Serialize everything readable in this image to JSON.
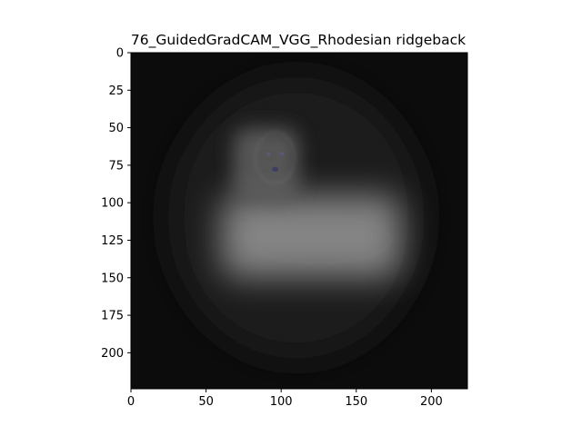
{
  "chart_data": {
    "type": "heatmap",
    "title": "76_GuidedGradCAM_VGG_Rhodesian ridgeback",
    "xlabel": "",
    "ylabel": "",
    "xlim": [
      0,
      224
    ],
    "ylim": [
      224,
      0
    ],
    "xticks": [
      0,
      50,
      100,
      150,
      200
    ],
    "xtick_labels": [
      "0",
      "50",
      "100",
      "150",
      "200"
    ],
    "yticks": [
      0,
      25,
      50,
      75,
      100,
      125,
      150,
      175,
      200
    ],
    "ytick_labels": [
      "0",
      "25",
      "50",
      "75",
      "100",
      "125",
      "150",
      "175",
      "200"
    ],
    "grid": false,
    "colormap": "grayscale",
    "background_color": "#0d0d0d",
    "highlight_regions": [
      {
        "x": [
          60,
          180
        ],
        "y": [
          95,
          150
        ],
        "intensity": 0.55
      },
      {
        "x": [
          68,
          112
        ],
        "y": [
          50,
          100
        ],
        "intensity": 0.28
      }
    ],
    "subject_features": [
      {
        "name": "dog-head",
        "cx": 96,
        "cy": 70,
        "w": 26,
        "h": 34
      },
      {
        "name": "dog-body",
        "cx": 125,
        "cy": 125,
        "w": 95,
        "h": 30
      }
    ]
  },
  "colors": {
    "figure_bg": "#ffffff",
    "axes_frame": "#000000",
    "heatmap_dark": "#0c0c0c",
    "highlight": "#c9c9c9",
    "feature_tint": "#5a5a78"
  }
}
